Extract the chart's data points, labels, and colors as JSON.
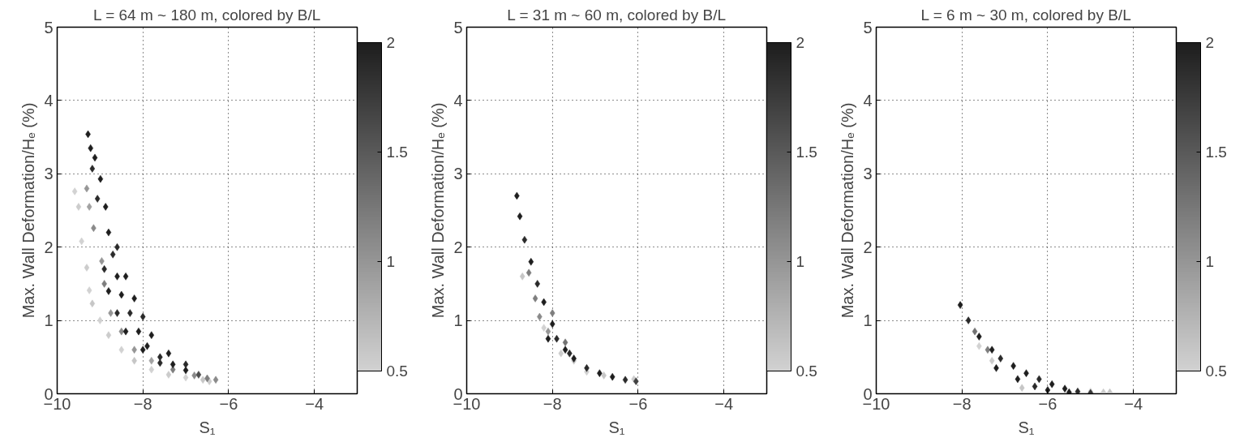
{
  "chart_data": [
    {
      "type": "scatter",
      "title": "L = 64 m ~ 180 m, colored by B/L",
      "xlabel": "S₁",
      "ylabel": "Max. Wall Deformation/Hₑ (%)",
      "xlim": [
        -10,
        -3
      ],
      "ylim": [
        0,
        5
      ],
      "xticks": [
        -10,
        -8,
        -6,
        -4
      ],
      "yticks": [
        0,
        1,
        2,
        3,
        4,
        5
      ],
      "clim": [
        0.5,
        2
      ],
      "cticks": [
        0.5,
        1,
        1.5,
        2
      ],
      "grid": true,
      "marker": "diamond",
      "series": [
        {
          "x": [
            -9.59,
            -9.5,
            -9.43,
            -9.31,
            -9.25,
            -9.18,
            -9.0,
            -8.8,
            -8.5,
            -8.2,
            -7.8,
            -7.4,
            -7.0,
            -6.6,
            -6.45
          ],
          "values": [
            2.76,
            2.55,
            2.08,
            1.72,
            1.41,
            1.23,
            1.0,
            0.8,
            0.6,
            0.45,
            0.33,
            0.26,
            0.22,
            0.19,
            0.17
          ],
          "cvalues": [
            0.5,
            0.55,
            0.5,
            0.55,
            0.5,
            0.6,
            0.5,
            0.55,
            0.5,
            0.6,
            0.5,
            0.55,
            0.5,
            0.6,
            0.55
          ],
          "colors": [
            "#d2d2d2",
            "#cccccc",
            "#d2d2d2",
            "#cccccc",
            "#d2d2d2",
            "#c6c6c6",
            "#d2d2d2",
            "#cccccc",
            "#d2d2d2",
            "#c6c6c6",
            "#d2d2d2",
            "#cccccc",
            "#d2d2d2",
            "#c6c6c6",
            "#cccccc"
          ]
        },
        {
          "x": [
            -9.31,
            -9.25,
            -9.15,
            -8.96,
            -8.9,
            -8.75,
            -8.5,
            -8.2,
            -7.8,
            -7.3,
            -6.8,
            -6.5,
            -6.3
          ],
          "values": [
            2.8,
            2.55,
            2.26,
            1.81,
            1.5,
            1.1,
            0.85,
            0.6,
            0.45,
            0.33,
            0.25,
            0.21,
            0.19
          ],
          "cvalues": [
            1.0,
            0.9,
            1.1,
            1.0,
            1.2,
            1.0,
            1.1,
            1.0,
            0.9,
            1.2,
            1.1,
            1.2,
            1.1
          ],
          "colors": [
            "#969696",
            "#a2a2a2",
            "#8a8a8a",
            "#969696",
            "#7e7e7e",
            "#969696",
            "#8a8a8a",
            "#969696",
            "#a2a2a2",
            "#7e7e7e",
            "#8a8a8a",
            "#7e7e7e",
            "#8a8a8a"
          ]
        },
        {
          "x": [
            -9.28,
            -9.22,
            -9.12,
            -9.18,
            -8.99,
            -9.06,
            -8.87,
            -8.8,
            -8.7,
            -8.6,
            -8.5,
            -8.3,
            -8.1,
            -7.9,
            -7.6,
            -7.3,
            -7.0,
            -6.7,
            -8.9,
            -8.8,
            -8.6,
            -8.4,
            -8.0,
            -7.6,
            -8.6,
            -8.4,
            -8.2,
            -8.0,
            -7.8,
            -7.4,
            -7.0
          ],
          "values": [
            3.54,
            3.35,
            3.22,
            3.07,
            2.93,
            2.66,
            2.55,
            2.2,
            1.9,
            1.6,
            1.35,
            1.1,
            0.85,
            0.65,
            0.5,
            0.4,
            0.32,
            0.26,
            1.7,
            1.4,
            1.1,
            0.85,
            0.6,
            0.42,
            2.0,
            1.6,
            1.3,
            1.05,
            0.8,
            0.55,
            0.4
          ],
          "cvalues": [
            2,
            2,
            2,
            1.9,
            2,
            1.9,
            2,
            2,
            1.9,
            2,
            2,
            1.9,
            2,
            2,
            1.9,
            2,
            2,
            1.6,
            1.9,
            2,
            1.9,
            2,
            2,
            1.9,
            1.9,
            2,
            2,
            1.9,
            2,
            2,
            1.9
          ],
          "colors": [
            "#1e1e1e",
            "#1e1e1e",
            "#1e1e1e",
            "#2a2a2a",
            "#1e1e1e",
            "#2a2a2a",
            "#1e1e1e",
            "#1e1e1e",
            "#2a2a2a",
            "#1e1e1e",
            "#1e1e1e",
            "#2a2a2a",
            "#1e1e1e",
            "#1e1e1e",
            "#2a2a2a",
            "#1e1e1e",
            "#1e1e1e",
            "#4e4e4e",
            "#2a2a2a",
            "#1e1e1e",
            "#2a2a2a",
            "#1e1e1e",
            "#1e1e1e",
            "#2a2a2a",
            "#2a2a2a",
            "#1e1e1e",
            "#1e1e1e",
            "#2a2a2a",
            "#1e1e1e",
            "#1e1e1e",
            "#2a2a2a"
          ]
        }
      ]
    },
    {
      "type": "scatter",
      "title": "L = 31 m ~ 60 m, colored by B/L",
      "xlabel": "S₁",
      "ylabel": "Max. Wall Deformation/Hₑ (%)",
      "xlim": [
        -10,
        -3
      ],
      "ylim": [
        0,
        5
      ],
      "xticks": [
        -10,
        -8,
        -6,
        -4
      ],
      "yticks": [
        0,
        1,
        2,
        3,
        4,
        5
      ],
      "clim": [
        0.5,
        2
      ],
      "cticks": [
        0.5,
        1,
        1.5,
        2
      ],
      "grid": true,
      "marker": "diamond",
      "series": [
        {
          "x": [
            -8.7,
            -8.2,
            -7.8,
            -7.5,
            -7.2,
            -6.8,
            -6.1
          ],
          "values": [
            1.6,
            0.9,
            0.55,
            0.45,
            0.3,
            0.25,
            0.2
          ],
          "cvalues": [
            0.6,
            0.5,
            0.55,
            0.6,
            0.5,
            0.6,
            0.55
          ],
          "colors": [
            "#c6c6c6",
            "#d2d2d2",
            "#cccccc",
            "#c6c6c6",
            "#d2d2d2",
            "#c6c6c6",
            "#cccccc"
          ]
        },
        {
          "x": [
            -8.4,
            -8.3,
            -8.0,
            -8.1,
            -7.7,
            -8.55
          ],
          "values": [
            1.3,
            1.05,
            1.1,
            0.85,
            0.7,
            1.65
          ],
          "cvalues": [
            1.2,
            1.1,
            1.2,
            1.0,
            1.3,
            1.2
          ],
          "colors": [
            "#7e7e7e",
            "#8a8a8a",
            "#7e7e7e",
            "#969696",
            "#727272",
            "#7e7e7e"
          ]
        },
        {
          "x": [
            -8.83,
            -8.76,
            -8.65,
            -8.5,
            -8.35,
            -8.2,
            -8.0,
            -7.9,
            -7.7,
            -7.5,
            -7.2,
            -6.9,
            -6.6,
            -6.3,
            -6.05,
            -8.1,
            -7.6
          ],
          "values": [
            2.7,
            2.42,
            2.1,
            1.8,
            1.5,
            1.25,
            0.95,
            0.75,
            0.6,
            0.48,
            0.35,
            0.28,
            0.23,
            0.19,
            0.17,
            0.75,
            0.55
          ],
          "cvalues": [
            2,
            2,
            1.9,
            2,
            1.9,
            2,
            2,
            1.9,
            2,
            2,
            1.9,
            2,
            2,
            1.9,
            1.7,
            2,
            1.9
          ],
          "colors": [
            "#1e1e1e",
            "#1e1e1e",
            "#2a2a2a",
            "#1e1e1e",
            "#2a2a2a",
            "#1e1e1e",
            "#1e1e1e",
            "#2a2a2a",
            "#1e1e1e",
            "#1e1e1e",
            "#2a2a2a",
            "#1e1e1e",
            "#1e1e1e",
            "#2a2a2a",
            "#424242",
            "#1e1e1e",
            "#2a2a2a"
          ]
        }
      ]
    },
    {
      "type": "scatter",
      "title": "L = 6 m ~ 30 m, colored by B/L",
      "xlabel": "S₁",
      "ylabel": "Max. Wall Deformation/Hₑ (%)",
      "xlim": [
        -10,
        -3
      ],
      "ylim": [
        0,
        5
      ],
      "xticks": [
        -10,
        -8,
        -6,
        -4
      ],
      "yticks": [
        0,
        1,
        2,
        3,
        4,
        5
      ],
      "clim": [
        0.5,
        2
      ],
      "cticks": [
        0.5,
        1,
        1.5,
        2
      ],
      "grid": true,
      "marker": "diamond",
      "series": [
        {
          "x": [
            -7.6,
            -7.3,
            -6.6,
            -5.0,
            -4.7,
            -4.55
          ],
          "values": [
            0.65,
            0.45,
            0.08,
            0.03,
            0.02,
            0.02
          ],
          "cvalues": [
            0.5,
            0.55,
            0.6,
            0.5,
            0.55,
            0.6
          ],
          "colors": [
            "#d2d2d2",
            "#cccccc",
            "#c6c6c6",
            "#d2d2d2",
            "#cccccc",
            "#c6c6c6"
          ]
        },
        {
          "x": [
            -7.7,
            -7.4
          ],
          "values": [
            0.85,
            0.6
          ],
          "cvalues": [
            1.3,
            1.2
          ],
          "colors": [
            "#727272",
            "#7e7e7e"
          ]
        },
        {
          "x": [
            -8.04,
            -7.85,
            -7.6,
            -7.3,
            -7.1,
            -6.8,
            -6.5,
            -6.2,
            -5.9,
            -5.6,
            -5.3,
            -5.0,
            -7.2,
            -6.7,
            -6.3,
            -6.0,
            -5.5
          ],
          "values": [
            1.21,
            1.0,
            0.78,
            0.6,
            0.48,
            0.38,
            0.28,
            0.2,
            0.13,
            0.07,
            0.03,
            0.01,
            0.35,
            0.2,
            0.1,
            0.05,
            0.02
          ],
          "cvalues": [
            2,
            1.9,
            2,
            2,
            1.9,
            2,
            2,
            1.9,
            2,
            2,
            1.9,
            1.8,
            2,
            2,
            1.9,
            2,
            2
          ],
          "colors": [
            "#1e1e1e",
            "#2a2a2a",
            "#1e1e1e",
            "#1e1e1e",
            "#2a2a2a",
            "#1e1e1e",
            "#1e1e1e",
            "#2a2a2a",
            "#1e1e1e",
            "#1e1e1e",
            "#2a2a2a",
            "#363636",
            "#1e1e1e",
            "#1e1e1e",
            "#2a2a2a",
            "#1e1e1e",
            "#1e1e1e"
          ]
        }
      ]
    }
  ]
}
